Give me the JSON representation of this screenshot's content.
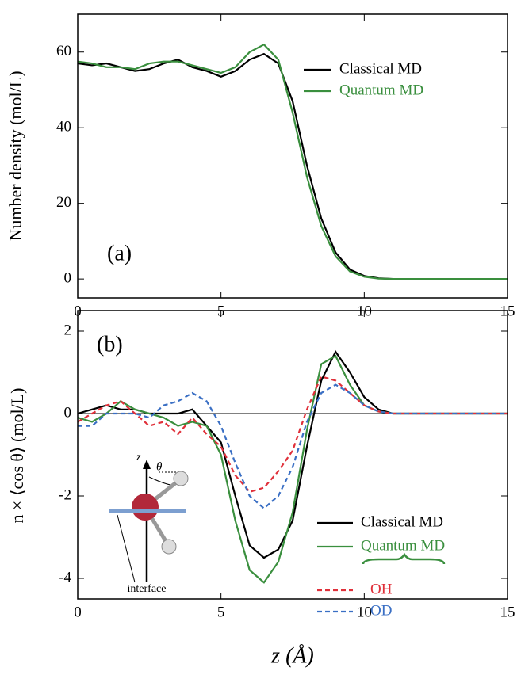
{
  "chart_data": [
    {
      "type": "line",
      "annotation": "(a)",
      "ylabel": "Number density (mol/L)",
      "x": [
        0,
        0.5,
        1,
        1.5,
        2,
        2.5,
        3,
        3.5,
        4,
        4.5,
        5,
        5.5,
        6,
        6.5,
        7,
        7.5,
        8,
        8.5,
        9,
        9.5,
        10,
        10.5,
        11,
        12,
        13,
        14,
        15
      ],
      "series": [
        {
          "name": "Classical MD",
          "color": "#000000",
          "linestyle": "solid",
          "values": [
            57,
            56.5,
            57,
            56,
            55,
            55.5,
            57,
            58,
            56,
            55,
            53.5,
            55,
            58,
            59.5,
            57,
            47,
            30,
            16,
            7,
            2.5,
            0.8,
            0.2,
            0,
            0,
            0,
            0,
            0
          ]
        },
        {
          "name": "Quantum MD",
          "color": "#3a8f3e",
          "linestyle": "solid",
          "values": [
            57.5,
            57,
            56,
            56,
            55.5,
            57,
            57.5,
            57.5,
            56.5,
            55.5,
            54.5,
            56,
            60,
            62,
            58,
            44,
            27,
            14,
            6,
            2,
            0.6,
            0.1,
            0,
            0,
            0,
            0,
            0
          ]
        }
      ],
      "xlim": [
        0,
        15
      ],
      "xticks": [
        0,
        5,
        10,
        15
      ],
      "ylim": [
        -5,
        70
      ],
      "yticks": [
        0,
        20,
        40,
        60
      ],
      "zero_line": false
    },
    {
      "type": "line",
      "annotation": "(b)",
      "ylabel": "n × ⟨cos θ⟩ (mol/L)",
      "xlabel": "z (Å)",
      "x": [
        0,
        0.5,
        1,
        1.5,
        2,
        2.5,
        3,
        3.5,
        4,
        4.5,
        5,
        5.5,
        6,
        6.5,
        7,
        7.5,
        8,
        8.5,
        9,
        9.5,
        10,
        10.5,
        11,
        12,
        13,
        14,
        15
      ],
      "series": [
        {
          "name": "Classical MD",
          "color": "#000000",
          "linestyle": "solid",
          "values": [
            0,
            0.1,
            0.2,
            0.1,
            0.1,
            0,
            0,
            0,
            0.1,
            -0.3,
            -0.7,
            -2.0,
            -3.2,
            -3.5,
            -3.3,
            -2.6,
            -0.8,
            0.8,
            1.5,
            1.0,
            0.4,
            0.1,
            0,
            0,
            0,
            0,
            0
          ]
        },
        {
          "name": "Quantum MD",
          "color": "#3a8f3e",
          "linestyle": "solid",
          "values": [
            -0.1,
            -0.2,
            0,
            0.3,
            0.1,
            0,
            -0.1,
            -0.3,
            -0.2,
            -0.3,
            -1.0,
            -2.6,
            -3.8,
            -4.1,
            -3.6,
            -2.4,
            -0.4,
            1.2,
            1.4,
            0.7,
            0.2,
            0.05,
            0,
            0,
            0,
            0,
            0
          ]
        },
        {
          "name": "OH",
          "color": "#e0303a",
          "linestyle": "dashed",
          "values": [
            -0.2,
            0,
            0.2,
            0.3,
            0,
            -0.3,
            -0.2,
            -0.5,
            -0.1,
            -0.5,
            -0.8,
            -1.5,
            -1.9,
            -1.8,
            -1.4,
            -0.9,
            0.1,
            0.9,
            0.8,
            0.5,
            0.2,
            0.05,
            0,
            0,
            0,
            0,
            0
          ]
        },
        {
          "name": "OD",
          "color": "#3a6fc4",
          "linestyle": "dashed",
          "values": [
            -0.3,
            -0.3,
            0,
            0,
            0,
            -0.1,
            0.2,
            0.3,
            0.5,
            0.3,
            -0.3,
            -1.2,
            -2.0,
            -2.3,
            -2.0,
            -1.3,
            -0.2,
            0.5,
            0.7,
            0.5,
            0.2,
            0.05,
            0,
            0,
            0,
            0,
            0
          ]
        }
      ],
      "xlim": [
        0,
        15
      ],
      "xticks": [
        0,
        5,
        10,
        15
      ],
      "ylim": [
        -4.5,
        2.5
      ],
      "yticks": [
        -4,
        -2,
        0,
        2
      ],
      "zero_line": true,
      "inset": {
        "axis_label": "z",
        "angle_label": "θ",
        "surface_label": "interface"
      }
    }
  ]
}
